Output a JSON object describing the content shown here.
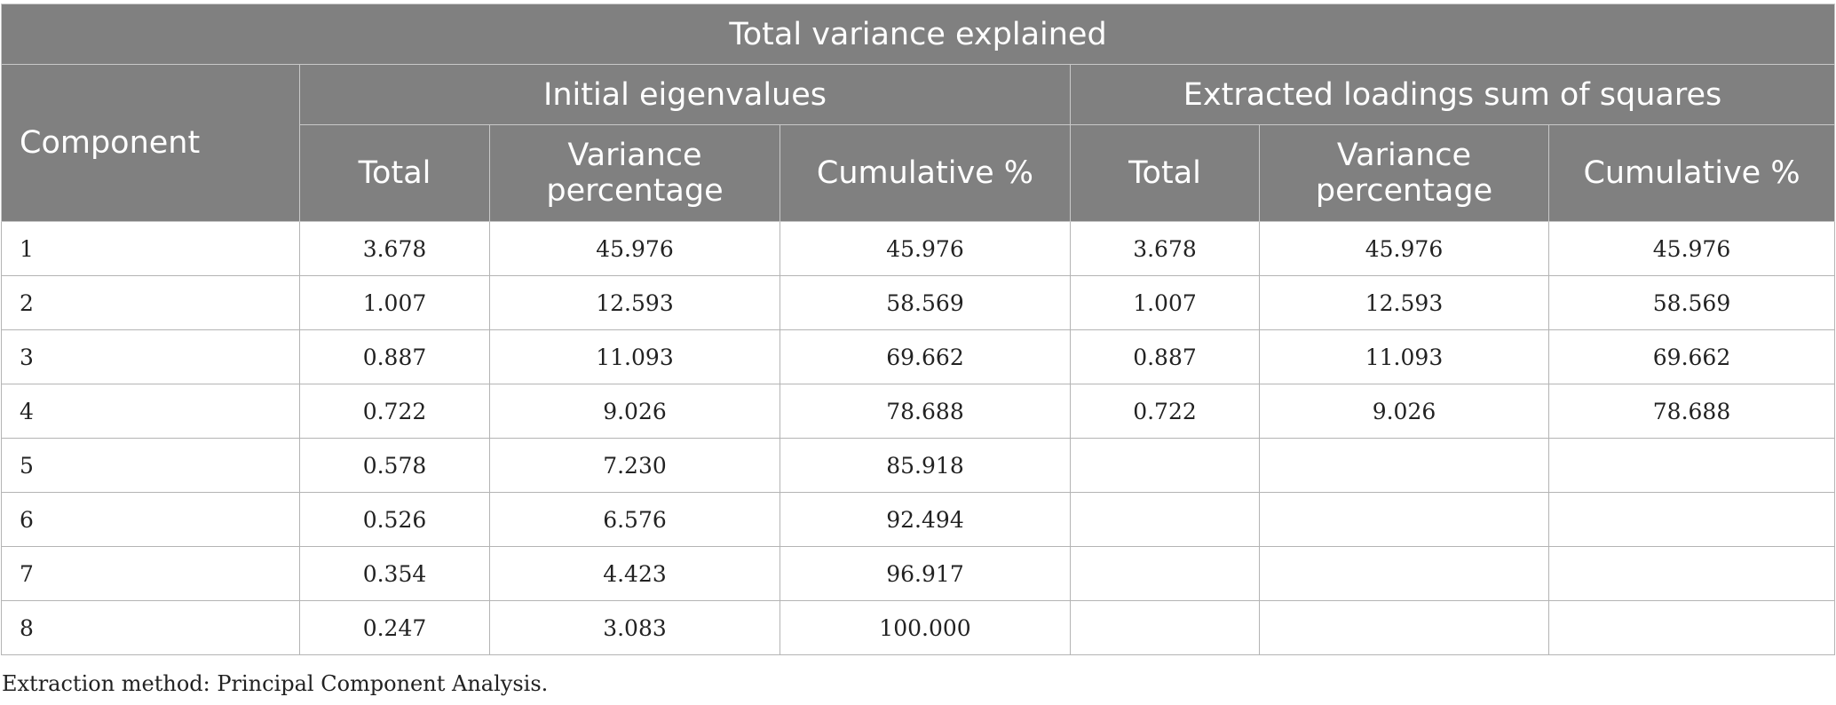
{
  "table": {
    "title": "Total variance explained",
    "component_label": "Component",
    "group_initial": "Initial eigenvalues",
    "group_extracted": "Extracted loadings sum of squares",
    "sub_total": "Total",
    "sub_variance": "Variance percentage",
    "sub_cumulative": "Cumulative %",
    "rows": [
      {
        "component": "1",
        "init_total": "3.678",
        "init_var": "45.976",
        "init_cum": "45.976",
        "ext_total": "3.678",
        "ext_var": "45.976",
        "ext_cum": "45.976"
      },
      {
        "component": "2",
        "init_total": "1.007",
        "init_var": "12.593",
        "init_cum": "58.569",
        "ext_total": "1.007",
        "ext_var": "12.593",
        "ext_cum": "58.569"
      },
      {
        "component": "3",
        "init_total": "0.887",
        "init_var": "11.093",
        "init_cum": "69.662",
        "ext_total": "0.887",
        "ext_var": "11.093",
        "ext_cum": "69.662"
      },
      {
        "component": "4",
        "init_total": "0.722",
        "init_var": "9.026",
        "init_cum": "78.688",
        "ext_total": "0.722",
        "ext_var": "9.026",
        "ext_cum": "78.688"
      },
      {
        "component": "5",
        "init_total": "0.578",
        "init_var": "7.230",
        "init_cum": "85.918",
        "ext_total": "",
        "ext_var": "",
        "ext_cum": ""
      },
      {
        "component": "6",
        "init_total": "0.526",
        "init_var": "6.576",
        "init_cum": "92.494",
        "ext_total": "",
        "ext_var": "",
        "ext_cum": ""
      },
      {
        "component": "7",
        "init_total": "0.354",
        "init_var": "4.423",
        "init_cum": "96.917",
        "ext_total": "",
        "ext_var": "",
        "ext_cum": ""
      },
      {
        "component": "8",
        "init_total": "0.247",
        "init_var": "3.083",
        "init_cum": "100.000",
        "ext_total": "",
        "ext_var": "",
        "ext_cum": ""
      }
    ]
  },
  "footnote": "Extraction method: Principal Component Analysis."
}
